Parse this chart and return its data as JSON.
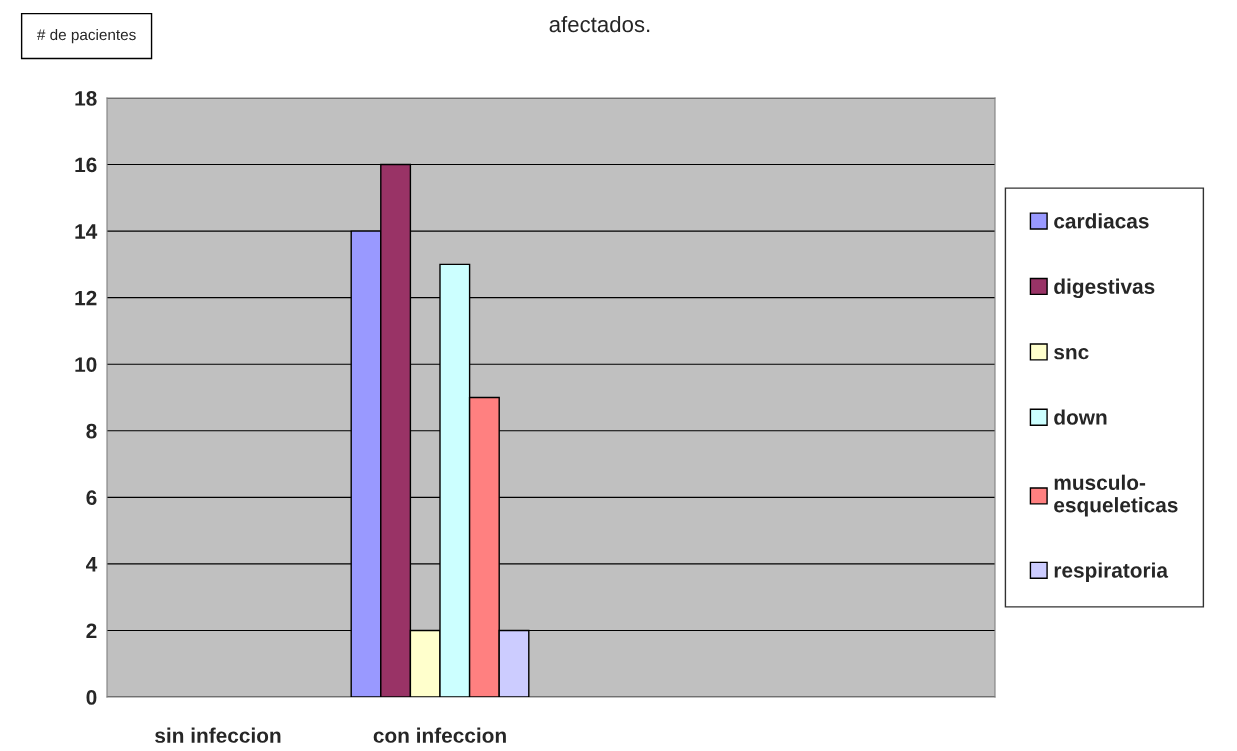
{
  "chart_data": {
    "type": "bar",
    "title": "afectados.",
    "ylabel": "# de pacientes",
    "categories": [
      "sin infeccion",
      "con infeccion",
      null,
      null
    ],
    "series": [
      {
        "name": "cardiacas",
        "color": "#9999ff",
        "values": [
          null,
          14,
          null,
          null
        ]
      },
      {
        "name": "digestivas",
        "color": "#993366",
        "values": [
          null,
          16,
          null,
          null
        ]
      },
      {
        "name": "snc",
        "color": "#ffffcc",
        "values": [
          null,
          2,
          null,
          null
        ]
      },
      {
        "name": "down",
        "color": "#ccffff",
        "values": [
          null,
          13,
          null,
          null
        ]
      },
      {
        "name": "musculo-\nesqueleticas",
        "color": "#ff8080",
        "values": [
          null,
          9,
          null,
          null
        ]
      },
      {
        "name": "respiratoria",
        "color": "#ccccff",
        "values": [
          null,
          2,
          null,
          null
        ]
      }
    ],
    "ylim": [
      0,
      18
    ],
    "yticks": [
      0,
      2,
      4,
      6,
      8,
      10,
      12,
      14,
      16,
      18
    ],
    "grid": "y",
    "legend": "right"
  }
}
